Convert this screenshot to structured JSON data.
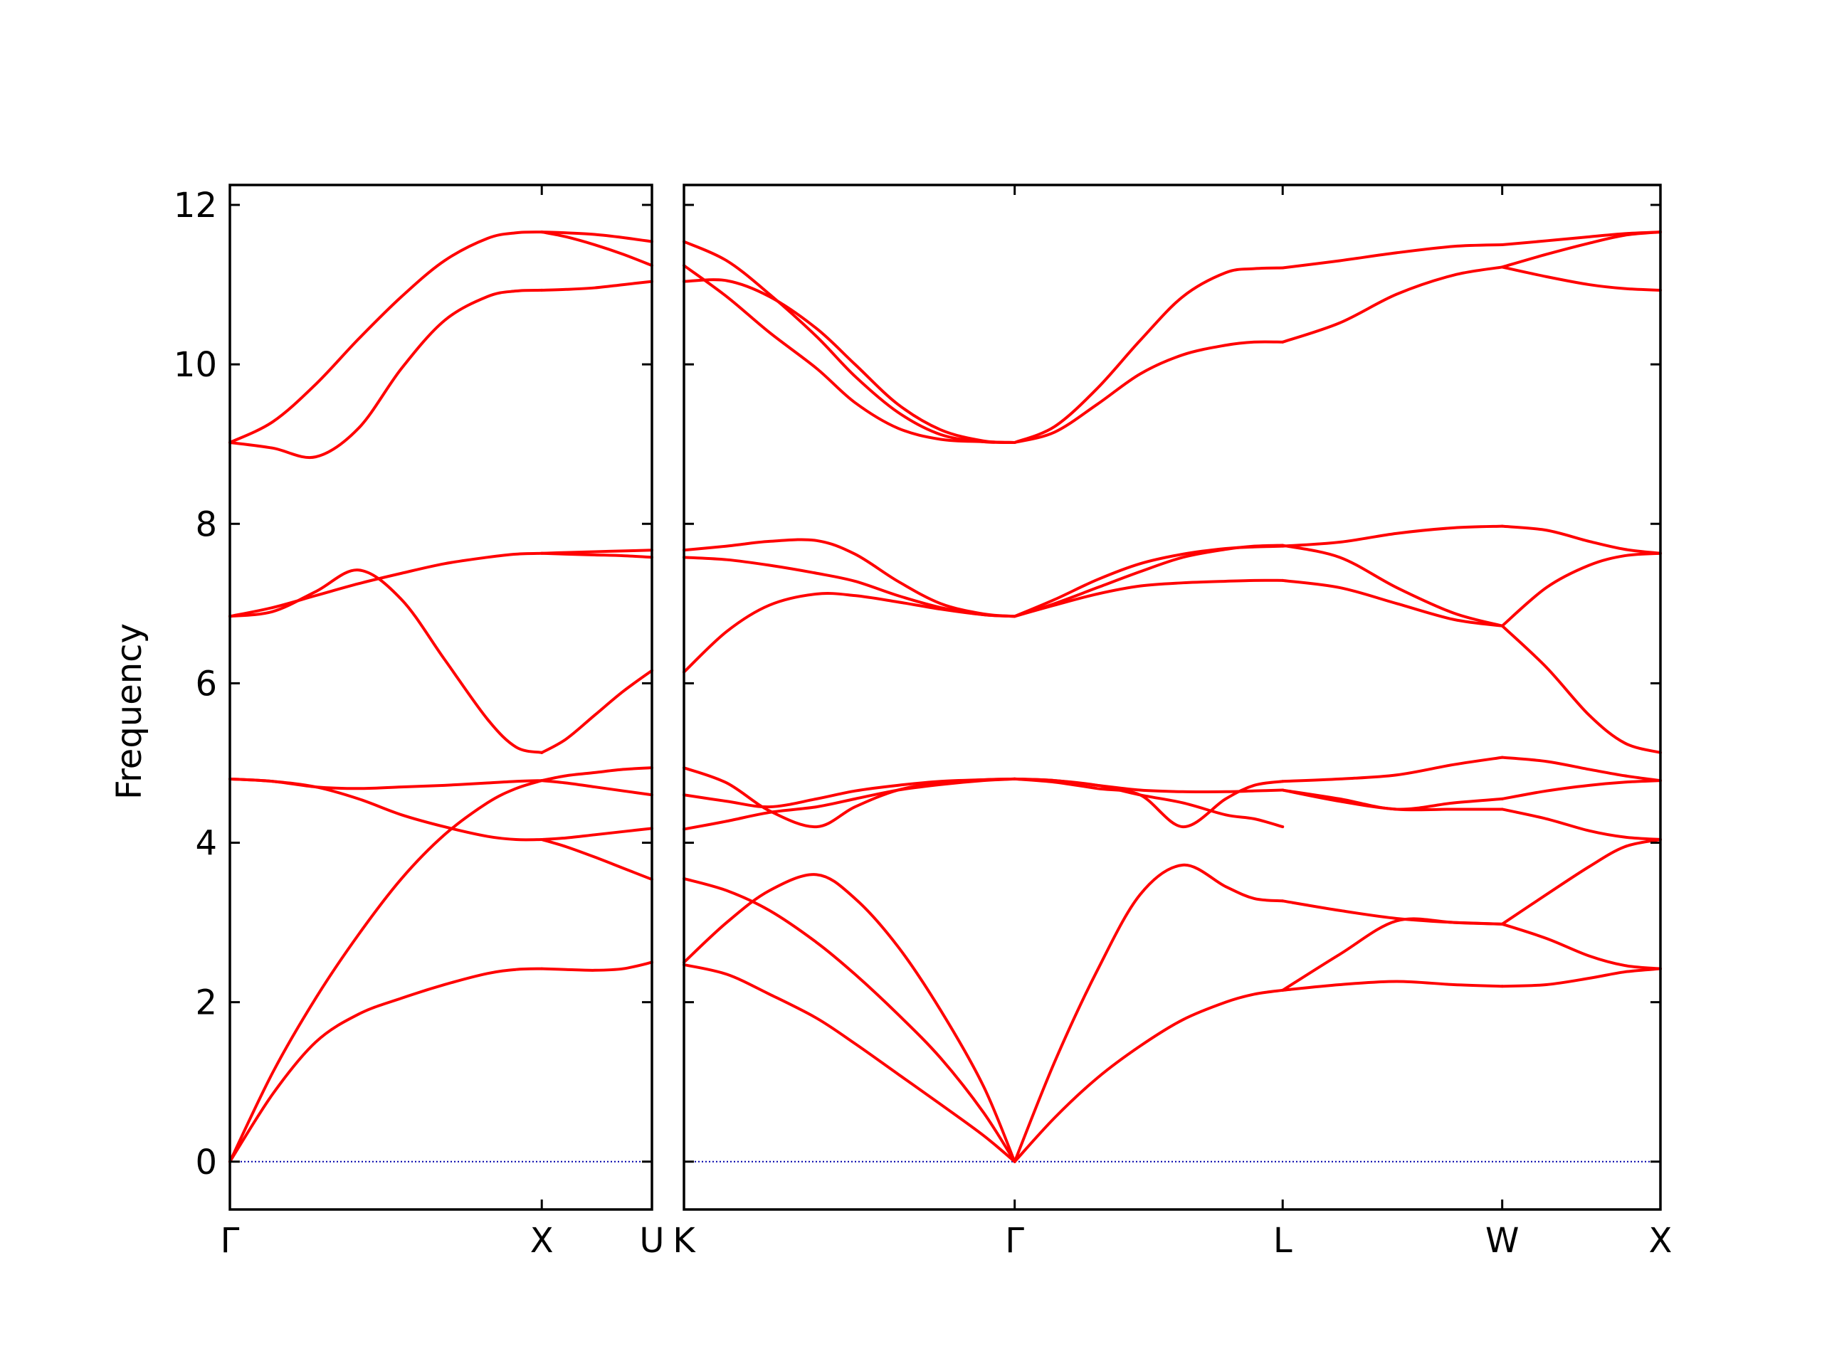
{
  "chart_data": {
    "type": "line",
    "title": "",
    "xlabel": "",
    "ylabel": "Frequency",
    "ylim": [
      -0.6,
      12.25
    ],
    "yticks": [
      0,
      2,
      4,
      6,
      8,
      10,
      12
    ],
    "ytick_labels": [
      "0",
      "2",
      "4",
      "6",
      "8",
      "10",
      "12"
    ],
    "grid": false,
    "line_color": "#ff0000",
    "zero_line_color": "#0000aa",
    "zero_line": 0,
    "panels": [
      {
        "xlim": [
          0,
          2.95
        ],
        "ticks": [
          {
            "x": 0,
            "label": "Γ"
          },
          {
            "x": 2.18,
            "label": "X"
          },
          {
            "x": 2.95,
            "label": "U"
          }
        ],
        "segments": [
          {
            "x": [
              0,
              0.3,
              0.6,
              0.9,
              1.2,
              1.5,
              1.8,
              2.0,
              2.18
            ],
            "bands": [
              [
                0,
                0.85,
                1.5,
                1.85,
                2.05,
                2.22,
                2.36,
                2.41,
                2.42
              ],
              [
                0,
                1.12,
                2.05,
                2.85,
                3.55,
                4.1,
                4.5,
                4.68,
                4.78
              ],
              [
                4.8,
                4.77,
                4.7,
                4.55,
                4.35,
                4.2,
                4.08,
                4.04,
                4.04
              ],
              [
                4.8,
                4.77,
                4.7,
                4.68,
                4.7,
                4.72,
                4.75,
                4.77,
                4.78
              ],
              [
                6.84,
                6.9,
                7.15,
                7.42,
                7.05,
                6.3,
                5.55,
                5.2,
                5.13
              ],
              [
                6.84,
                6.95,
                7.1,
                7.25,
                7.38,
                7.5,
                7.58,
                7.62,
                7.63
              ],
              [
                9.02,
                8.95,
                8.84,
                9.2,
                9.95,
                10.55,
                10.85,
                10.92,
                10.93
              ],
              [
                9.02,
                9.28,
                9.75,
                10.32,
                10.85,
                11.3,
                11.58,
                11.65,
                11.66
              ]
            ]
          },
          {
            "x": [
              2.18,
              2.35,
              2.55,
              2.75,
              2.95
            ],
            "bands": [
              [
                2.42,
                2.41,
                2.4,
                2.42,
                2.5
              ],
              [
                4.78,
                4.84,
                4.88,
                4.92,
                4.94
              ],
              [
                4.04,
                3.95,
                3.82,
                3.68,
                3.54
              ],
              [
                4.04,
                4.06,
                4.1,
                4.14,
                4.18
              ],
              [
                4.78,
                4.75,
                4.7,
                4.65,
                4.6
              ],
              [
                5.13,
                5.3,
                5.6,
                5.9,
                6.16
              ],
              [
                7.63,
                7.62,
                7.61,
                7.6,
                7.58
              ],
              [
                7.63,
                7.64,
                7.65,
                7.66,
                7.67
              ],
              [
                10.93,
                10.94,
                10.96,
                11.0,
                11.04
              ],
              [
                11.66,
                11.6,
                11.5,
                11.38,
                11.24
              ],
              [
                11.66,
                11.65,
                11.63,
                11.59,
                11.54
              ]
            ]
          }
        ]
      },
      {
        "xlim": [
          0,
          6.85
        ],
        "ticks": [
          {
            "x": 0,
            "label": "K"
          },
          {
            "x": 2.32,
            "label": "Γ"
          },
          {
            "x": 4.2,
            "label": "L"
          },
          {
            "x": 5.74,
            "label": "W"
          },
          {
            "x": 6.85,
            "label": "X"
          }
        ],
        "segments": [
          {
            "x": [
              0,
              0.3,
              0.6,
              0.93,
              1.2,
              1.5,
              1.8,
              2.1,
              2.32
            ],
            "bands": [
              [
                2.47,
                2.35,
                2.1,
                1.8,
                1.48,
                1.1,
                0.72,
                0.33,
                0
              ],
              [
                2.5,
                3.0,
                3.4,
                3.6,
                3.3,
                2.7,
                1.9,
                0.95,
                0
              ],
              [
                3.55,
                3.4,
                3.15,
                2.75,
                2.35,
                1.85,
                1.3,
                0.62,
                0
              ],
              [
                4.17,
                4.27,
                4.38,
                4.45,
                4.55,
                4.66,
                4.73,
                4.78,
                4.8
              ],
              [
                4.6,
                4.52,
                4.45,
                4.55,
                4.65,
                4.72,
                4.77,
                4.79,
                4.8
              ],
              [
                4.94,
                4.75,
                4.4,
                4.2,
                4.45,
                4.66,
                4.75,
                4.79,
                4.8
              ],
              [
                6.14,
                6.65,
                6.98,
                7.12,
                7.1,
                7.02,
                6.93,
                6.86,
                6.84
              ],
              [
                7.58,
                7.55,
                7.48,
                7.38,
                7.28,
                7.1,
                6.95,
                6.86,
                6.84
              ],
              [
                7.67,
                7.72,
                7.78,
                7.79,
                7.62,
                7.28,
                7.0,
                6.87,
                6.84
              ],
              [
                11.04,
                11.05,
                10.85,
                10.45,
                10.0,
                9.5,
                9.18,
                9.04,
                9.02
              ],
              [
                11.24,
                10.85,
                10.4,
                9.95,
                9.52,
                9.2,
                9.06,
                9.03,
                9.02
              ],
              [
                11.54,
                11.3,
                10.88,
                10.35,
                9.85,
                9.4,
                9.12,
                9.03,
                9.02
              ]
            ]
          },
          {
            "x": [
              2.32,
              2.6,
              2.9,
              3.2,
              3.5,
              3.8,
              4.0,
              4.2
            ],
            "bands": [
              [
                0,
                0.55,
                1.05,
                1.45,
                1.78,
                2.0,
                2.1,
                2.15
              ],
              [
                0,
                1.25,
                2.4,
                3.35,
                3.72,
                3.45,
                3.3,
                3.27
              ],
              [
                4.8,
                4.78,
                4.72,
                4.6,
                4.5,
                4.35,
                4.3,
                4.2
              ],
              [
                4.8,
                4.78,
                4.72,
                4.66,
                4.64,
                4.64,
                4.65,
                4.66
              ],
              [
                4.8,
                4.76,
                4.68,
                4.6,
                4.2,
                4.55,
                4.72,
                4.77
              ],
              [
                6.84,
                6.98,
                7.12,
                7.22,
                7.26,
                7.28,
                7.29,
                7.29
              ],
              [
                6.84,
                7.05,
                7.3,
                7.5,
                7.62,
                7.69,
                7.71,
                7.72
              ],
              [
                6.84,
                7.0,
                7.2,
                7.4,
                7.58,
                7.68,
                7.72,
                7.73
              ],
              [
                9.02,
                9.15,
                9.5,
                9.88,
                10.12,
                10.24,
                10.28,
                10.28
              ],
              [
                9.02,
                9.22,
                9.7,
                10.3,
                10.85,
                11.15,
                11.2,
                11.21
              ]
            ]
          },
          {
            "x": [
              4.2,
              4.6,
              5.0,
              5.4,
              5.74
            ],
            "bands": [
              [
                2.15,
                2.22,
                2.26,
                2.22,
                2.2
              ],
              [
                2.15,
                2.6,
                3.02,
                3.0,
                2.98
              ],
              [
                3.27,
                3.15,
                3.05,
                3.0,
                2.98
              ],
              [
                4.66,
                4.55,
                4.42,
                4.5,
                4.55
              ],
              [
                4.66,
                4.52,
                4.42,
                4.42,
                4.42
              ],
              [
                4.77,
                4.8,
                4.85,
                4.98,
                5.07
              ],
              [
                7.29,
                7.2,
                7.0,
                6.8,
                6.72
              ],
              [
                7.73,
                7.58,
                7.2,
                6.88,
                6.72
              ],
              [
                7.72,
                7.77,
                7.88,
                7.95,
                7.97
              ],
              [
                10.28,
                10.52,
                10.88,
                11.12,
                11.22
              ],
              [
                11.21,
                11.3,
                11.4,
                11.48,
                11.5
              ]
            ]
          },
          {
            "x": [
              5.74,
              6.05,
              6.35,
              6.6,
              6.85
            ],
            "bands": [
              [
                2.2,
                2.22,
                2.3,
                2.38,
                2.42
              ],
              [
                2.98,
                2.8,
                2.58,
                2.46,
                2.42
              ],
              [
                2.98,
                3.35,
                3.7,
                3.95,
                4.04
              ],
              [
                4.42,
                4.3,
                4.15,
                4.07,
                4.04
              ],
              [
                4.55,
                4.65,
                4.72,
                4.76,
                4.78
              ],
              [
                5.07,
                5.02,
                4.92,
                4.84,
                4.78
              ],
              [
                6.72,
                6.2,
                5.6,
                5.25,
                5.13
              ],
              [
                6.72,
                7.2,
                7.48,
                7.6,
                7.63
              ],
              [
                7.97,
                7.92,
                7.78,
                7.68,
                7.63
              ],
              [
                11.22,
                11.1,
                11.0,
                10.95,
                10.93
              ],
              [
                11.22,
                11.38,
                11.52,
                11.62,
                11.66
              ],
              [
                11.5,
                11.55,
                11.6,
                11.64,
                11.66
              ]
            ]
          }
        ]
      }
    ]
  }
}
